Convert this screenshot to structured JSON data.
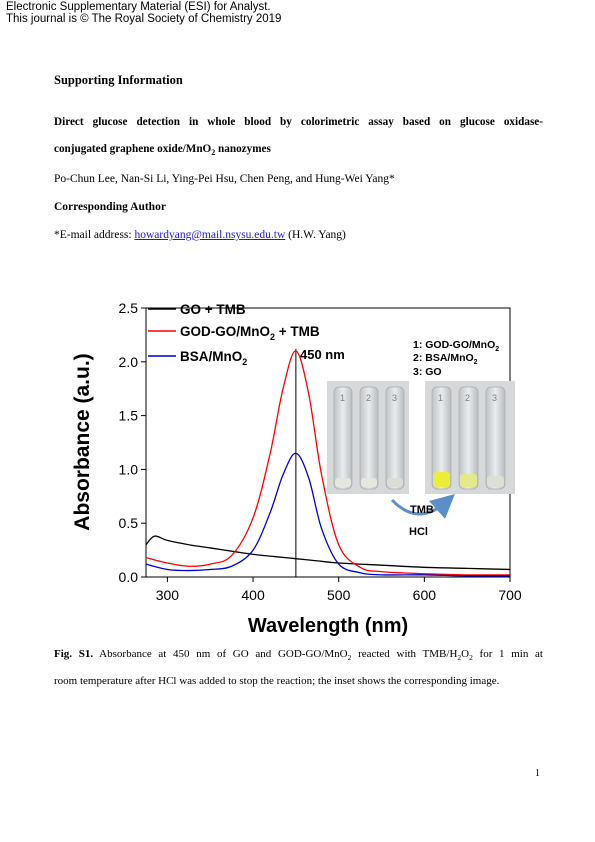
{
  "header": {
    "line1": "Electronic Supplementary Material (ESI) for Analyst.",
    "line2": "This journal is © The Royal Society of Chemistry 2019"
  },
  "section_title": "Supporting Information",
  "paper_title": {
    "line1": "Direct glucose detection in whole blood by colorimetric assay based on glucose oxidase-",
    "line2_pre": "conjugated graphene oxide/MnO",
    "line2_sub": "2",
    "line2_post": " nanozymes"
  },
  "authors": "Po-Chun Lee, Nan-Si Li, Ying-Pei Hsu, Chen Peng, and Hung-Wei Yang*",
  "corresponding": {
    "heading": "Corresponding Author",
    "email_prefix": "*E-mail address: ",
    "email": "howardyang@mail.nsysu.edu.tw",
    "email_suffix": " (H.W. Yang)"
  },
  "chart_data": {
    "type": "line",
    "xlabel": "Wavelength (nm)",
    "ylabel": "Absorbance (a.u.)",
    "xlim": [
      275,
      700
    ],
    "ylim": [
      0,
      2.5
    ],
    "x_ticks": [
      "300",
      "400",
      "500",
      "600",
      "700"
    ],
    "y_ticks": [
      "0.0",
      "0.5",
      "1.0",
      "1.5",
      "2.0",
      "2.5"
    ],
    "legend_position": "top-left",
    "annotation": "450 nm",
    "series": [
      {
        "name": "GO + TMB",
        "color": "#000000",
        "x": [
          275,
          285,
          300,
          325,
          350,
          375,
          400,
          425,
          450,
          475,
          500,
          550,
          600,
          650,
          700
        ],
        "y": [
          0.3,
          0.38,
          0.34,
          0.3,
          0.27,
          0.24,
          0.21,
          0.19,
          0.17,
          0.15,
          0.13,
          0.11,
          0.09,
          0.08,
          0.07
        ]
      },
      {
        "name_pre": "GOD-GO/MnO",
        "name_sub": "2",
        "name_post": " + TMB",
        "color": "#ff0000",
        "x": [
          275,
          300,
          325,
          350,
          375,
          400,
          420,
          435,
          450,
          465,
          480,
          500,
          525,
          550,
          600,
          650,
          700
        ],
        "y": [
          0.18,
          0.13,
          0.1,
          0.12,
          0.2,
          0.55,
          1.15,
          1.75,
          2.1,
          1.7,
          0.95,
          0.3,
          0.09,
          0.05,
          0.03,
          0.02,
          0.02
        ]
      },
      {
        "name_pre": "BSA/MnO",
        "name_sub": "2",
        "name_post": "",
        "color": "#0000cc",
        "x": [
          275,
          300,
          325,
          350,
          375,
          400,
          420,
          435,
          450,
          465,
          480,
          500,
          525,
          550,
          600,
          650,
          700
        ],
        "y": [
          0.12,
          0.07,
          0.06,
          0.07,
          0.1,
          0.25,
          0.6,
          0.95,
          1.15,
          0.92,
          0.45,
          0.12,
          0.04,
          0.02,
          0.02,
          0.01,
          0.01
        ]
      }
    ],
    "inset": {
      "vial_labels": [
        "1",
        "2",
        "3"
      ],
      "legend_1_pre": "1: GOD-GO/MnO",
      "legend_1_sub": "2",
      "legend_2_pre": "2: BSA/MnO",
      "legend_2_sub": "2",
      "legend_3": "3: GO",
      "arrow_label_1": "TMB",
      "arrow_label_2": "HCl"
    }
  },
  "caption": {
    "label": "Fig. S1.",
    "line1_a": " Absorbance at 450 nm of GO and GOD-GO/MnO",
    "line1_sub": "2",
    "line1_b": " reacted with TMB/H",
    "line1_sub2": "2",
    "line1_c": "O",
    "line1_sub3": "2",
    "line1_d": " for 1 min at",
    "line2": "room temperature after HCl was added to stop the reaction; the inset shows the corresponding image."
  },
  "page_number": "1"
}
